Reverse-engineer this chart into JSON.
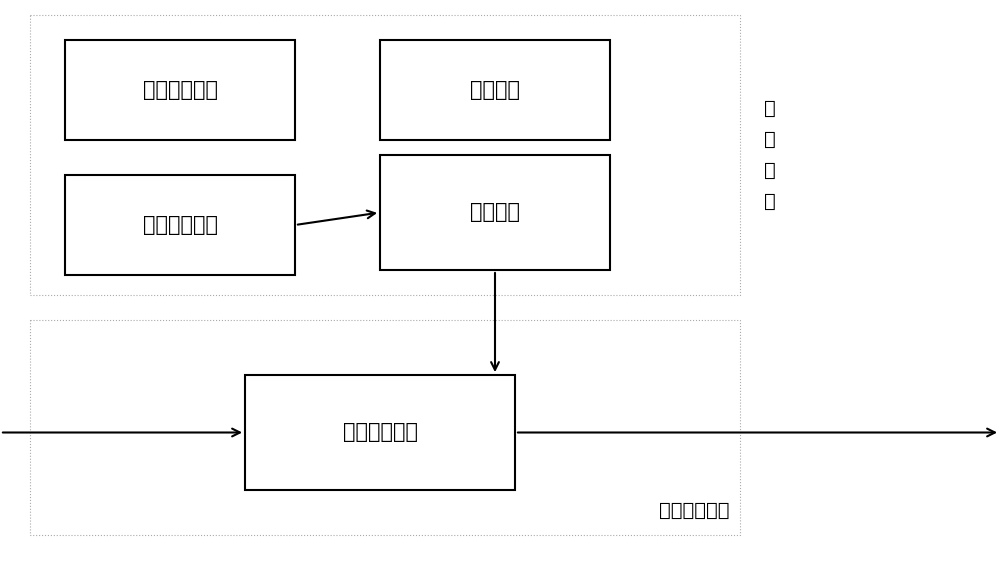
{
  "bg_color": "#ffffff",
  "fig_width": 10.0,
  "fig_height": 5.81,
  "dpi": 100,
  "label_overshoot": "过冲控制电路",
  "label_protection": "保护电路",
  "label_signal": "信号产生电路",
  "label_drive": "驱动电路",
  "label_fullbridge": "全桥变换电路",
  "label_control": "控\n制\n模\n块",
  "label_power": "功率变换模块",
  "font_size_inner": 15,
  "font_size_outer": 14,
  "outer_lw": 0.8,
  "inner_lw": 1.5,
  "arrow_lw": 1.5,
  "outer_color": "#aaaaaa",
  "inner_color": "#000000",
  "arrow_color": "#000000",
  "text_color": "#000000"
}
